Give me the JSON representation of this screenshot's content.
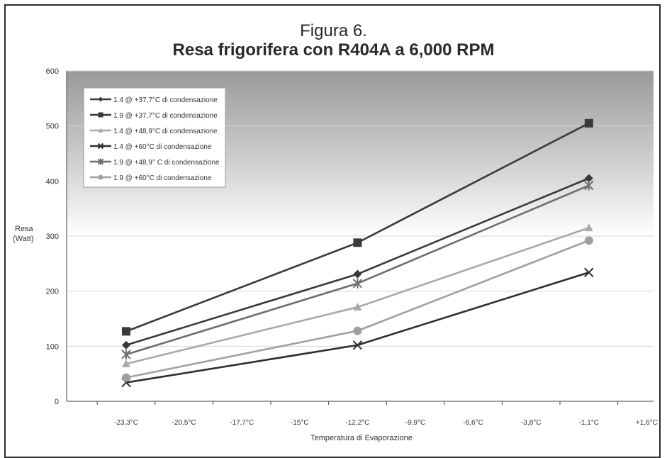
{
  "figure": {
    "title": "Figura 6.",
    "subtitle": "Resa frigorifera con R404A a 6,000 RPM"
  },
  "chart_data": {
    "type": "line",
    "title": "Resa frigorifera con R404A a 6,000 RPM",
    "xlabel": "Temperatura di Evaporazione",
    "ylabel": [
      "Resa",
      "(Watt)"
    ],
    "ylim": [
      0,
      600
    ],
    "yticks": [
      0,
      100,
      200,
      300,
      400,
      500,
      600
    ],
    "categories": [
      "-23,3°C",
      "-20,5°C",
      "-17,7°C",
      "-15°C",
      "-12,2°C",
      "-9,9°C",
      "-6,6°C",
      "-3,8°C",
      "-1,1°C",
      "+1,6°C"
    ],
    "grid": "horizontal",
    "legend_position": "top-left",
    "series": [
      {
        "name": "1.4 @ +37,7°C di condensazione",
        "marker": "diamond",
        "color": "#3a3a3a",
        "x": [
          "-23,3°C",
          "-12,2°C",
          "-1,1°C"
        ],
        "values": [
          102,
          231,
          405
        ]
      },
      {
        "name": "1.9 @ +37,7°C di condensazione",
        "marker": "square",
        "color": "#3a3a3a",
        "x": [
          "-23,3°C",
          "-12,2°C",
          "-1,1°C"
        ],
        "values": [
          127,
          288,
          505
        ]
      },
      {
        "name": "1.4 @ +48,9°C di condensazione",
        "marker": "triangle",
        "color": "#a9a9a9",
        "x": [
          "-23,3°C",
          "-12,2°C",
          "-1,1°C"
        ],
        "values": [
          68,
          171,
          315
        ]
      },
      {
        "name": "1.4 @ +60°C di condensazione",
        "marker": "x",
        "color": "#2e2e2e",
        "x": [
          "-23,3°C",
          "-12,2°C",
          "-1,1°C"
        ],
        "values": [
          34,
          102,
          234
        ]
      },
      {
        "name": "1.9 @ +48,9° C di condensazione",
        "marker": "star",
        "color": "#6e6e6e",
        "x": [
          "-23,3°C",
          "-12,2°C",
          "-1,1°C"
        ],
        "values": [
          85,
          214,
          392
        ]
      },
      {
        "name": "1.9 @ +60°C di condensazione",
        "marker": "circle",
        "color": "#a0a0a0",
        "x": [
          "-23,3°C",
          "-12,2°C",
          "-1,1°C"
        ],
        "values": [
          43,
          128,
          292
        ]
      }
    ]
  }
}
